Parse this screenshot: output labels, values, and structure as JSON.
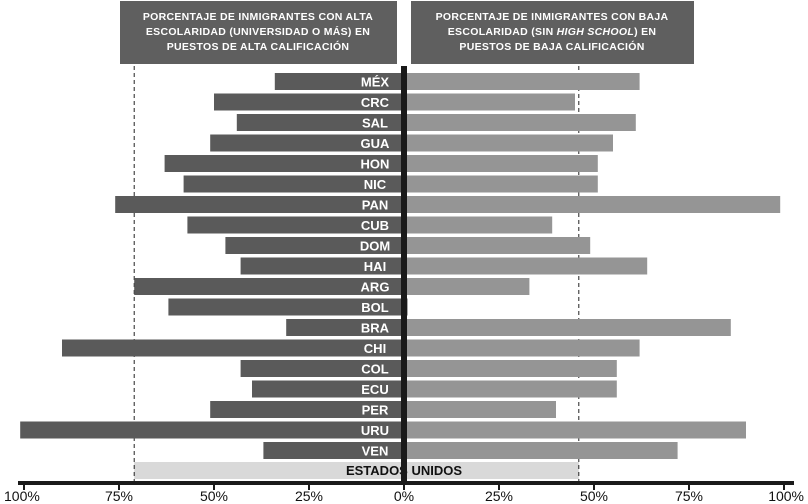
{
  "chart_data": {
    "type": "bar",
    "left_header": [
      "PORCENTAJE DE INMIGRANTES CON ALTA",
      "ESCOLARIDAD (UNIVERSIDAD O MÁS) EN",
      "PUESTOS DE ALTA CALIFICACIÓN"
    ],
    "right_header": [
      "PORCENTAJE DE INMIGRANTES CON BAJA",
      "ESCOLARIDAD (SIN HIGH SCHOOL) EN",
      "PUESTOS DE BAJA CALIFICACIÓN"
    ],
    "categories": [
      "MÉX",
      "CRC",
      "SAL",
      "GUA",
      "HON",
      "NIC",
      "PAN",
      "CUB",
      "DOM",
      "HAI",
      "ARG",
      "BOL",
      "BRA",
      "CHI",
      "COL",
      "ECU",
      "PER",
      "URU",
      "VEN"
    ],
    "left_values": [
      34,
      50,
      44,
      51,
      63,
      58,
      76,
      57,
      47,
      43,
      71,
      62,
      31,
      90,
      43,
      40,
      51,
      101,
      37
    ],
    "right_values": [
      62,
      45,
      61,
      55,
      51,
      51,
      99,
      39,
      49,
      64,
      33,
      1,
      86,
      62,
      56,
      56,
      40,
      90,
      72
    ],
    "baseline": {
      "label": "ESTADOS UNIDOS",
      "left_value": 71,
      "right_value": 46
    },
    "x_ticks": [
      "100%",
      "75%",
      "50%",
      "25%",
      "0%",
      "25%",
      "50%",
      "75%",
      "100%"
    ],
    "xlim": [
      -100,
      100
    ],
    "colors": {
      "left_bar": "#5a5a5a",
      "right_bar": "#959595",
      "header_bg": "#5f5f5f",
      "baseline_bg": "#d9d9d9",
      "axis": "#1a1a1a"
    }
  }
}
